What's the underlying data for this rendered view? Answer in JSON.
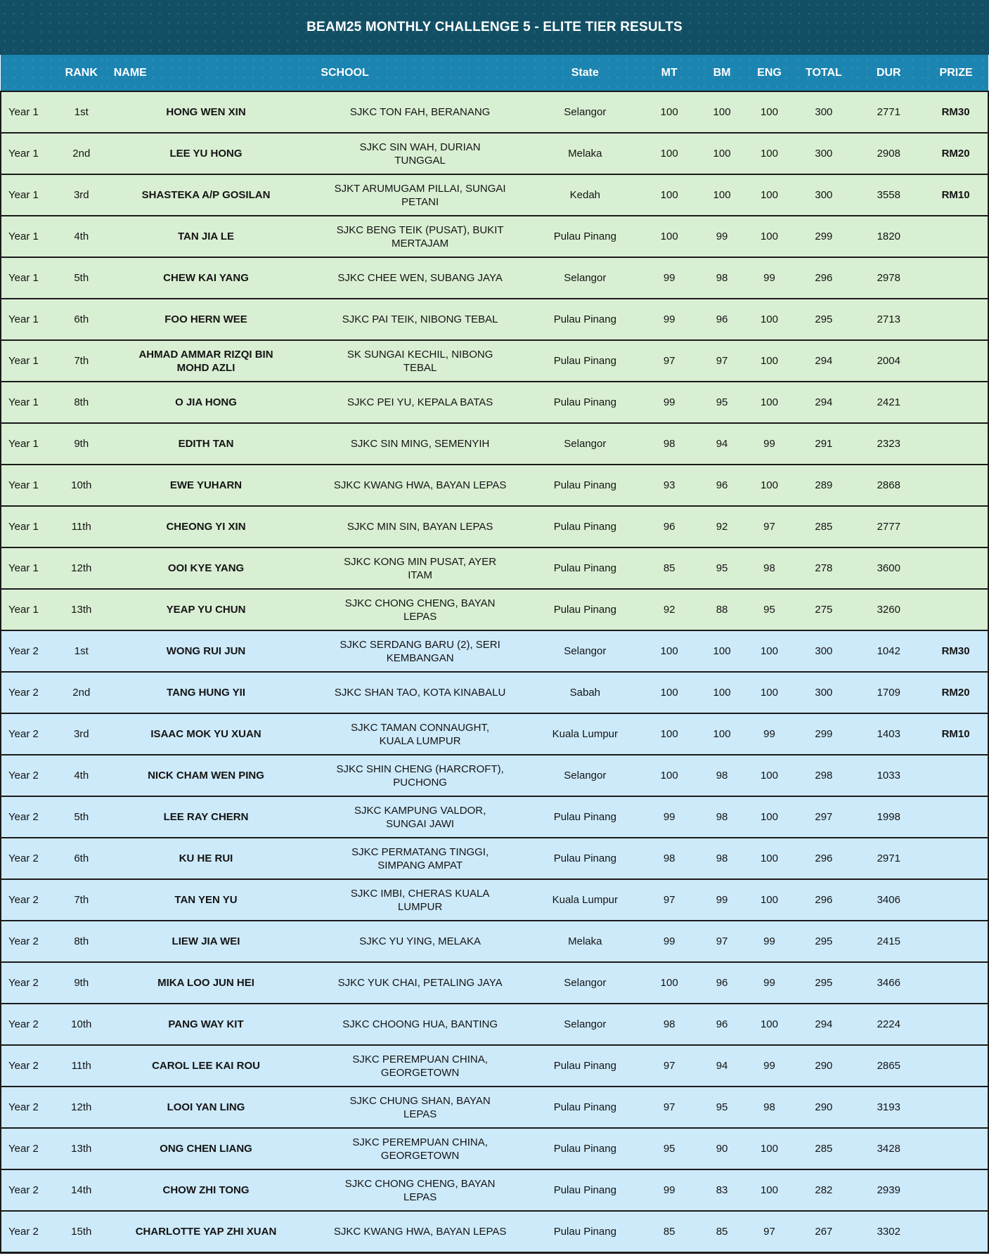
{
  "title": "BEAM25 MONTHLY CHALLENGE 5 - ELITE TIER RESULTS",
  "columns": {
    "year": "",
    "rank": "RANK",
    "name": "NAME",
    "school": "SCHOOL",
    "state": "State",
    "mt": "MT",
    "bm": "BM",
    "eng": "ENG",
    "total": "TOTAL",
    "dur": "DUR",
    "prize": "PRIZE"
  },
  "colors": {
    "title_bar": "#124f64",
    "header": "#1b84b0",
    "year1_row": "#d9efd3",
    "year2_row": "#cdeafa",
    "border": "#1b1b1b",
    "cell_text": "#141414"
  },
  "rows": [
    {
      "tier": 1,
      "year": "Year 1",
      "rank": "1st",
      "name": "HONG WEN XIN",
      "school": "SJKC TON FAH, BERANANG",
      "state": "Selangor",
      "mt": "100",
      "bm": "100",
      "eng": "100",
      "total": "300",
      "dur": "2771",
      "prize": "RM30"
    },
    {
      "tier": 1,
      "year": "Year 1",
      "rank": "2nd",
      "name": "LEE YU HONG",
      "school": "SJKC SIN WAH, DURIAN TUNGGAL",
      "state": "Melaka",
      "mt": "100",
      "bm": "100",
      "eng": "100",
      "total": "300",
      "dur": "2908",
      "prize": "RM20"
    },
    {
      "tier": 1,
      "year": "Year 1",
      "rank": "3rd",
      "name": "SHASTEKA A/P GOSILAN",
      "school": "SJKT ARUMUGAM PILLAI, SUNGAI PETANI",
      "state": "Kedah",
      "mt": "100",
      "bm": "100",
      "eng": "100",
      "total": "300",
      "dur": "3558",
      "prize": "RM10"
    },
    {
      "tier": 1,
      "year": "Year 1",
      "rank": "4th",
      "name": "TAN JIA LE",
      "school": "SJKC BENG TEIK (PUSAT), BUKIT MERTAJAM",
      "state": "Pulau Pinang",
      "mt": "100",
      "bm": "99",
      "eng": "100",
      "total": "299",
      "dur": "1820",
      "prize": ""
    },
    {
      "tier": 1,
      "year": "Year 1",
      "rank": "5th",
      "name": "CHEW KAI YANG",
      "school": "SJKC CHEE WEN, SUBANG JAYA",
      "state": "Selangor",
      "mt": "99",
      "bm": "98",
      "eng": "99",
      "total": "296",
      "dur": "2978",
      "prize": ""
    },
    {
      "tier": 1,
      "year": "Year 1",
      "rank": "6th",
      "name": "FOO HERN WEE",
      "school": "SJKC PAI TEIK, NIBONG TEBAL",
      "state": "Pulau Pinang",
      "mt": "99",
      "bm": "96",
      "eng": "100",
      "total": "295",
      "dur": "2713",
      "prize": ""
    },
    {
      "tier": 1,
      "year": "Year 1",
      "rank": "7th",
      "name": "AHMAD AMMAR RIZQI BIN MOHD AZLI",
      "school": "SK SUNGAI KECHIL, NIBONG TEBAL",
      "state": "Pulau Pinang",
      "mt": "97",
      "bm": "97",
      "eng": "100",
      "total": "294",
      "dur": "2004",
      "prize": ""
    },
    {
      "tier": 1,
      "year": "Year 1",
      "rank": "8th",
      "name": "O JIA HONG",
      "school": "SJKC PEI YU, KEPALA BATAS",
      "state": "Pulau Pinang",
      "mt": "99",
      "bm": "95",
      "eng": "100",
      "total": "294",
      "dur": "2421",
      "prize": ""
    },
    {
      "tier": 1,
      "year": "Year 1",
      "rank": "9th",
      "name": "EDITH TAN",
      "school": "SJKC SIN MING, SEMENYIH",
      "state": "Selangor",
      "mt": "98",
      "bm": "94",
      "eng": "99",
      "total": "291",
      "dur": "2323",
      "prize": ""
    },
    {
      "tier": 1,
      "year": "Year 1",
      "rank": "10th",
      "name": "EWE YUHARN",
      "school": "SJKC KWANG HWA, BAYAN LEPAS",
      "state": "Pulau Pinang",
      "mt": "93",
      "bm": "96",
      "eng": "100",
      "total": "289",
      "dur": "2868",
      "prize": ""
    },
    {
      "tier": 1,
      "year": "Year 1",
      "rank": "11th",
      "name": "CHEONG YI XIN",
      "school": "SJKC MIN SIN, BAYAN LEPAS",
      "state": "Pulau Pinang",
      "mt": "96",
      "bm": "92",
      "eng": "97",
      "total": "285",
      "dur": "2777",
      "prize": ""
    },
    {
      "tier": 1,
      "year": "Year 1",
      "rank": "12th",
      "name": "OOI KYE YANG",
      "school": "SJKC KONG MIN PUSAT, AYER ITAM",
      "state": "Pulau Pinang",
      "mt": "85",
      "bm": "95",
      "eng": "98",
      "total": "278",
      "dur": "3600",
      "prize": ""
    },
    {
      "tier": 1,
      "year": "Year 1",
      "rank": "13th",
      "name": "YEAP YU CHUN",
      "school": "SJKC CHONG CHENG, BAYAN LEPAS",
      "state": "Pulau Pinang",
      "mt": "92",
      "bm": "88",
      "eng": "95",
      "total": "275",
      "dur": "3260",
      "prize": ""
    },
    {
      "tier": 2,
      "year": "Year 2",
      "rank": "1st",
      "name": "WONG RUI JUN",
      "school": "SJKC SERDANG BARU (2), SERI KEMBANGAN",
      "state": "Selangor",
      "mt": "100",
      "bm": "100",
      "eng": "100",
      "total": "300",
      "dur": "1042",
      "prize": "RM30"
    },
    {
      "tier": 2,
      "year": "Year 2",
      "rank": "2nd",
      "name": "TANG HUNG YII",
      "school": "SJKC SHAN TAO, KOTA KINABALU",
      "state": "Sabah",
      "mt": "100",
      "bm": "100",
      "eng": "100",
      "total": "300",
      "dur": "1709",
      "prize": "RM20"
    },
    {
      "tier": 2,
      "year": "Year 2",
      "rank": "3rd",
      "name": "ISAAC MOK YU XUAN",
      "school": "SJKC TAMAN CONNAUGHT, KUALA LUMPUR",
      "state": "Kuala Lumpur",
      "mt": "100",
      "bm": "100",
      "eng": "99",
      "total": "299",
      "dur": "1403",
      "prize": "RM10"
    },
    {
      "tier": 2,
      "year": "Year 2",
      "rank": "4th",
      "name": "NICK CHAM WEN PING",
      "school": "SJKC SHIN CHENG (HARCROFT), PUCHONG",
      "state": "Selangor",
      "mt": "100",
      "bm": "98",
      "eng": "100",
      "total": "298",
      "dur": "1033",
      "prize": ""
    },
    {
      "tier": 2,
      "year": "Year 2",
      "rank": "5th",
      "name": "LEE RAY CHERN",
      "school": "SJKC KAMPUNG VALDOR, SUNGAI JAWI",
      "state": "Pulau Pinang",
      "mt": "99",
      "bm": "98",
      "eng": "100",
      "total": "297",
      "dur": "1998",
      "prize": ""
    },
    {
      "tier": 2,
      "year": "Year 2",
      "rank": "6th",
      "name": "KU HE RUI",
      "school": "SJKC PERMATANG TINGGI, SIMPANG AMPAT",
      "state": "Pulau Pinang",
      "mt": "98",
      "bm": "98",
      "eng": "100",
      "total": "296",
      "dur": "2971",
      "prize": ""
    },
    {
      "tier": 2,
      "year": "Year 2",
      "rank": "7th",
      "name": "TAN YEN YU",
      "school": "SJKC IMBI, CHERAS KUALA LUMPUR",
      "state": "Kuala Lumpur",
      "mt": "97",
      "bm": "99",
      "eng": "100",
      "total": "296",
      "dur": "3406",
      "prize": ""
    },
    {
      "tier": 2,
      "year": "Year 2",
      "rank": "8th",
      "name": "LIEW JIA WEI",
      "school": "SJKC YU YING, MELAKA",
      "state": "Melaka",
      "mt": "99",
      "bm": "97",
      "eng": "99",
      "total": "295",
      "dur": "2415",
      "prize": ""
    },
    {
      "tier": 2,
      "year": "Year 2",
      "rank": "9th",
      "name": "MIKA LOO JUN HEI",
      "school": "SJKC YUK CHAI, PETALING JAYA",
      "state": "Selangor",
      "mt": "100",
      "bm": "96",
      "eng": "99",
      "total": "295",
      "dur": "3466",
      "prize": ""
    },
    {
      "tier": 2,
      "year": "Year 2",
      "rank": "10th",
      "name": "PANG WAY KIT",
      "school": "SJKC CHOONG HUA, BANTING",
      "state": "Selangor",
      "mt": "98",
      "bm": "96",
      "eng": "100",
      "total": "294",
      "dur": "2224",
      "prize": ""
    },
    {
      "tier": 2,
      "year": "Year 2",
      "rank": "11th",
      "name": "CAROL LEE KAI ROU",
      "school": "SJKC PEREMPUAN CHINA, GEORGETOWN",
      "state": "Pulau Pinang",
      "mt": "97",
      "bm": "94",
      "eng": "99",
      "total": "290",
      "dur": "2865",
      "prize": ""
    },
    {
      "tier": 2,
      "year": "Year 2",
      "rank": "12th",
      "name": "LOOI YAN LING",
      "school": "SJKC CHUNG SHAN, BAYAN LEPAS",
      "state": "Pulau Pinang",
      "mt": "97",
      "bm": "95",
      "eng": "98",
      "total": "290",
      "dur": "3193",
      "prize": ""
    },
    {
      "tier": 2,
      "year": "Year 2",
      "rank": "13th",
      "name": "ONG CHEN LIANG",
      "school": "SJKC PEREMPUAN CHINA, GEORGETOWN",
      "state": "Pulau Pinang",
      "mt": "95",
      "bm": "90",
      "eng": "100",
      "total": "285",
      "dur": "3428",
      "prize": ""
    },
    {
      "tier": 2,
      "year": "Year 2",
      "rank": "14th",
      "name": "CHOW ZHI TONG",
      "school": "SJKC CHONG CHENG, BAYAN LEPAS",
      "state": "Pulau Pinang",
      "mt": "99",
      "bm": "83",
      "eng": "100",
      "total": "282",
      "dur": "2939",
      "prize": ""
    },
    {
      "tier": 2,
      "year": "Year 2",
      "rank": "15th",
      "name": "CHARLOTTE YAP ZHI XUAN",
      "school": "SJKC KWANG HWA, BAYAN LEPAS",
      "state": "Pulau Pinang",
      "mt": "85",
      "bm": "85",
      "eng": "97",
      "total": "267",
      "dur": "3302",
      "prize": ""
    }
  ]
}
